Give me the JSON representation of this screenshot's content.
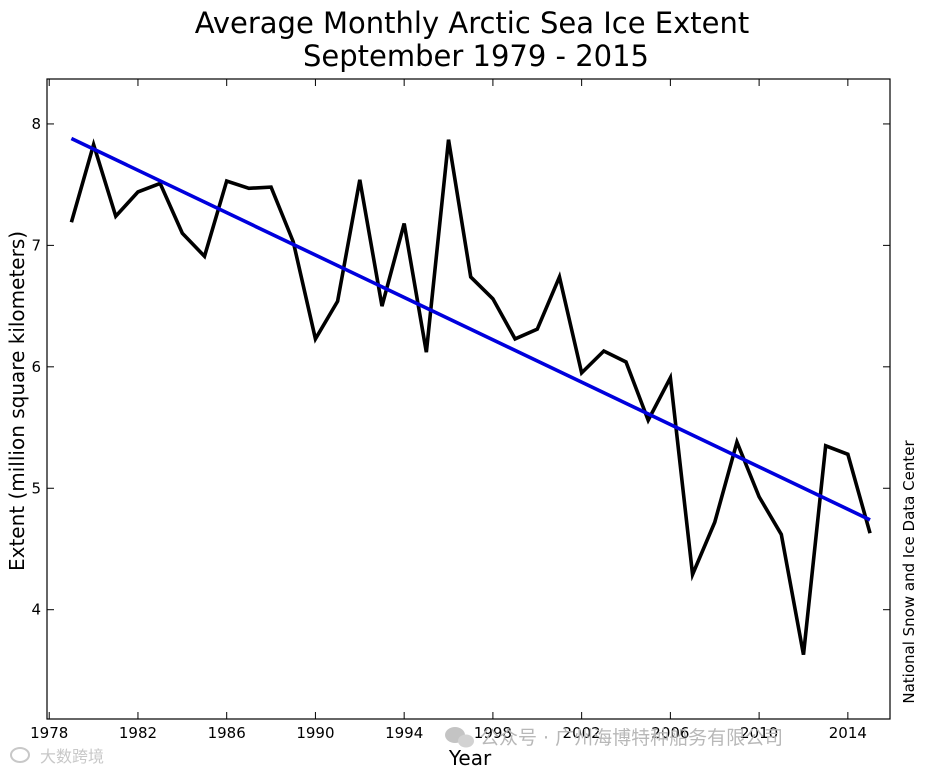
{
  "chart_data": {
    "type": "line",
    "title": "Average Monthly Arctic Sea Ice Extent",
    "subtitle": "September 1979 - 2015",
    "xlabel": "Year",
    "ylabel": "Extent (million square kilometers)",
    "xlim": [
      1977.9,
      2015.9
    ],
    "ylim": [
      3.1,
      8.37
    ],
    "xticks": [
      1978,
      1982,
      1986,
      1990,
      1994,
      1998,
      2002,
      2006,
      2010,
      2014
    ],
    "yticks": [
      4,
      5,
      6,
      7,
      8
    ],
    "grid": false,
    "legend": "none",
    "credit": "National Snow and Ice Data Center",
    "series": [
      {
        "color": "#000000",
        "x": [
          1979,
          1980,
          1981,
          1982,
          1983,
          1984,
          1985,
          1986,
          1987,
          1988,
          1989,
          1990,
          1991,
          1992,
          1993,
          1994,
          1995,
          1996,
          1997,
          1998,
          1999,
          2000,
          2001,
          2002,
          2003,
          2004,
          2005,
          2006,
          2007,
          2008,
          2009,
          2010,
          2011,
          2012,
          2013,
          2014,
          2015
        ],
        "values": [
          7.19,
          7.83,
          7.24,
          7.44,
          7.51,
          7.1,
          6.91,
          7.53,
          7.47,
          7.48,
          7.03,
          6.23,
          6.54,
          7.54,
          6.5,
          7.18,
          6.12,
          7.87,
          6.74,
          6.56,
          6.23,
          6.31,
          6.74,
          5.95,
          6.13,
          6.04,
          5.56,
          5.91,
          4.29,
          4.72,
          5.38,
          4.93,
          4.62,
          3.63,
          5.35,
          5.28,
          4.63
        ]
      },
      {
        "color": "#0000dd",
        "x": [
          1979,
          2015
        ],
        "values": [
          7.88,
          4.74
        ]
      }
    ]
  },
  "watermark": {
    "text": "公众号 · 广州海博特种船务有限公司",
    "corner_text": "大数跨境"
  },
  "colors": {
    "data_line": "#000000",
    "trend_line": "#0000dd",
    "watermark": "#b8b8b8"
  }
}
